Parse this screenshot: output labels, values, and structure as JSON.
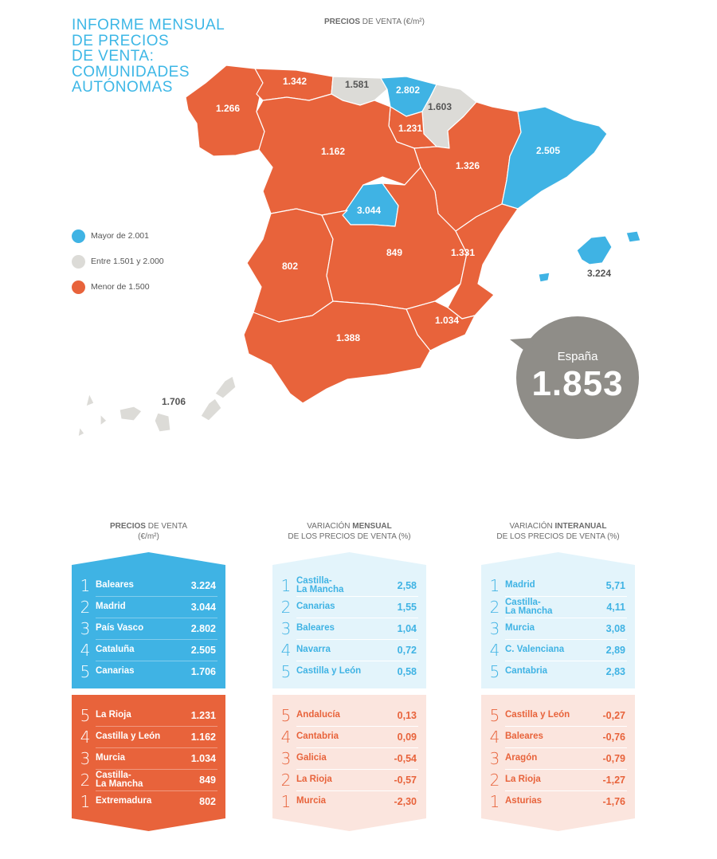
{
  "title_lines": [
    "INFORME MENSUAL",
    "DE PRECIOS",
    "DE VENTA:",
    "COMUNIDADES",
    "AUTÓNOMAS"
  ],
  "map_heading": {
    "bold": "PRECIOS",
    "rest": " DE VENTA (€/m²)"
  },
  "legend": [
    {
      "label": "Mayor de 2.001",
      "color": "#3fb3e4"
    },
    {
      "label": "Entre 1.501 y 2.000",
      "color": "#dcdbd7"
    },
    {
      "label": "Menor de 1.500",
      "color": "#e8633b"
    }
  ],
  "colors": {
    "blue": "#3fb3e4",
    "grey": "#dcdbd7",
    "orange": "#e8633b",
    "bubble": "#8f8d88"
  },
  "regions": [
    {
      "id": "galicia",
      "value": "1.266",
      "category": "orange"
    },
    {
      "id": "asturias",
      "value": "1.342",
      "category": "orange"
    },
    {
      "id": "cantabria",
      "value": "1.581",
      "category": "grey"
    },
    {
      "id": "pais-vasco",
      "value": "2.802",
      "category": "blue"
    },
    {
      "id": "navarra",
      "value": "1.603",
      "category": "grey"
    },
    {
      "id": "la-rioja",
      "value": "1.231",
      "category": "orange"
    },
    {
      "id": "castilla-y-leon",
      "value": "1.162",
      "category": "orange"
    },
    {
      "id": "aragon",
      "value": "1.326",
      "category": "orange"
    },
    {
      "id": "cataluna",
      "value": "2.505",
      "category": "blue"
    },
    {
      "id": "madrid",
      "value": "3.044",
      "category": "blue"
    },
    {
      "id": "extremadura",
      "value": "802",
      "category": "orange"
    },
    {
      "id": "castilla-la-mancha",
      "value": "849",
      "category": "orange"
    },
    {
      "id": "c-valenciana",
      "value": "1.331",
      "category": "orange"
    },
    {
      "id": "murcia",
      "value": "1.034",
      "category": "orange"
    },
    {
      "id": "andalucia",
      "value": "1.388",
      "category": "orange"
    },
    {
      "id": "baleares",
      "value": "3.224",
      "category": "blue"
    },
    {
      "id": "canarias",
      "value": "1.706",
      "category": "grey"
    }
  ],
  "spain": {
    "label": "España",
    "value": "1.853"
  },
  "columns": [
    {
      "title_bold": "PRECIOS",
      "title_pre": "",
      "title_post": " DE VENTA",
      "title_line2": "(€/m²)",
      "top": [
        {
          "rank": "1",
          "name": "Baleares",
          "value": "3.224"
        },
        {
          "rank": "2",
          "name": "Madrid",
          "value": "3.044"
        },
        {
          "rank": "3",
          "name": "País Vasco",
          "value": "2.802"
        },
        {
          "rank": "4",
          "name": "Cataluña",
          "value": "2.505"
        },
        {
          "rank": "5",
          "name": "Canarias",
          "value": "1.706"
        }
      ],
      "bottom": [
        {
          "rank": "5",
          "name": "La Rioja",
          "value": "1.231"
        },
        {
          "rank": "4",
          "name": "Castilla y León",
          "value": "1.162"
        },
        {
          "rank": "3",
          "name": "Murcia",
          "value": "1.034"
        },
        {
          "rank": "2",
          "name": "Castilla-\nLa Mancha",
          "value": "849"
        },
        {
          "rank": "1",
          "name": "Extremadura",
          "value": "802"
        }
      ]
    },
    {
      "title_bold": "MENSUAL",
      "title_pre": "VARIACIÓN ",
      "title_post": "",
      "title_line2": "DE LOS PRECIOS DE VENTA (%)",
      "top": [
        {
          "rank": "1",
          "name": "Castilla-\nLa Mancha",
          "value": "2,58"
        },
        {
          "rank": "2",
          "name": "Canarias",
          "value": "1,55"
        },
        {
          "rank": "3",
          "name": "Baleares",
          "value": "1,04"
        },
        {
          "rank": "4",
          "name": "Navarra",
          "value": "0,72"
        },
        {
          "rank": "5",
          "name": "Castilla y León",
          "value": "0,58"
        }
      ],
      "bottom": [
        {
          "rank": "5",
          "name": "Andalucía",
          "value": "0,13"
        },
        {
          "rank": "4",
          "name": "Cantabria",
          "value": "0,09"
        },
        {
          "rank": "3",
          "name": "Galicia",
          "value": "-0,54"
        },
        {
          "rank": "2",
          "name": "La Rioja",
          "value": "-0,57"
        },
        {
          "rank": "1",
          "name": "Murcia",
          "value": "-2,30"
        }
      ]
    },
    {
      "title_bold": "INTERANUAL",
      "title_pre": "VARIACIÓN ",
      "title_post": "",
      "title_line2": "DE LOS PRECIOS DE VENTA (%)",
      "top": [
        {
          "rank": "1",
          "name": "Madrid",
          "value": "5,71"
        },
        {
          "rank": "2",
          "name": "Castilla-\nLa Mancha",
          "value": "4,11"
        },
        {
          "rank": "3",
          "name": "Murcia",
          "value": "3,08"
        },
        {
          "rank": "4",
          "name": "C. Valenciana",
          "value": "2,89"
        },
        {
          "rank": "5",
          "name": "Cantabria",
          "value": "2,83"
        }
      ],
      "bottom": [
        {
          "rank": "5",
          "name": "Castilla y León",
          "value": "-0,27"
        },
        {
          "rank": "4",
          "name": "Baleares",
          "value": "-0,76"
        },
        {
          "rank": "3",
          "name": "Aragón",
          "value": "-0,79"
        },
        {
          "rank": "2",
          "name": "La Rioja",
          "value": "-1,27"
        },
        {
          "rank": "1",
          "name": "Asturias",
          "value": "-1,76"
        }
      ]
    }
  ]
}
